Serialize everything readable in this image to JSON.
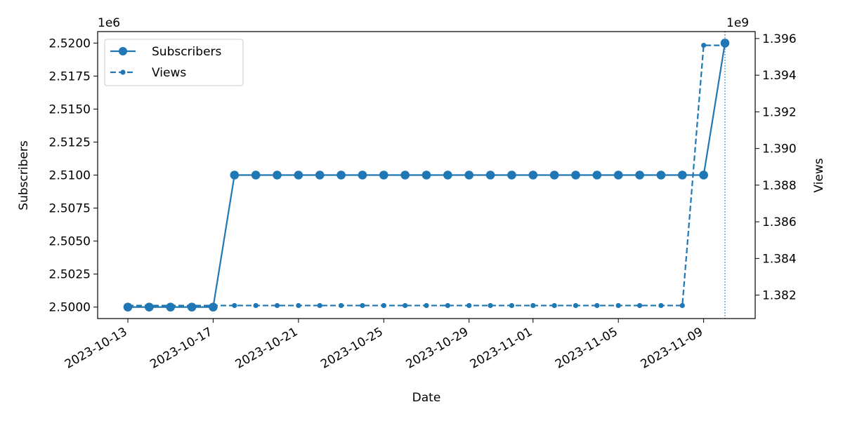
{
  "chart_data": {
    "type": "line",
    "xlabel": "Date",
    "ylabel": "Subscribers",
    "y2label": "Views",
    "y_multiplier_label": "1e6",
    "y2_multiplier_label": "1e9",
    "x_dates": [
      "2023-10-13",
      "2023-10-14",
      "2023-10-15",
      "2023-10-16",
      "2023-10-17",
      "2023-10-18",
      "2023-10-19",
      "2023-10-20",
      "2023-10-21",
      "2023-10-22",
      "2023-10-23",
      "2023-10-24",
      "2023-10-25",
      "2023-10-26",
      "2023-10-27",
      "2023-10-28",
      "2023-10-29",
      "2023-10-30",
      "2023-10-31",
      "2023-11-01",
      "2023-11-02",
      "2023-11-03",
      "2023-11-04",
      "2023-11-05",
      "2023-11-06",
      "2023-11-07",
      "2023-11-08",
      "2023-11-09",
      "2023-11-10"
    ],
    "x_ticks": [
      "2023-10-13",
      "2023-10-17",
      "2023-10-21",
      "2023-10-25",
      "2023-10-29",
      "2023-11-01",
      "2023-11-05",
      "2023-11-09"
    ],
    "x_range": [
      "2023-10-11 14:00",
      "2023-11-11 10:00"
    ],
    "vline_date": "2023-11-10",
    "series": [
      {
        "name": "Subscribers",
        "axis": "left",
        "style": "solid",
        "values": [
          2500000,
          2500000,
          2500000,
          2500000,
          2500000,
          2510000,
          2510000,
          2510000,
          2510000,
          2510000,
          2510000,
          2510000,
          2510000,
          2510000,
          2510000,
          2510000,
          2510000,
          2510000,
          2510000,
          2510000,
          2510000,
          2510000,
          2510000,
          2510000,
          2510000,
          2510000,
          2510000,
          2510000,
          2520000
        ]
      },
      {
        "name": "Views",
        "axis": "right",
        "style": "dashed",
        "values": [
          1381430000,
          1381430000,
          1381430000,
          1381430000,
          1381430000,
          1381430000,
          1381430000,
          1381430000,
          1381430000,
          1381430000,
          1381430000,
          1381430000,
          1381430000,
          1381430000,
          1381430000,
          1381430000,
          1381430000,
          1381430000,
          1381430000,
          1381430000,
          1381430000,
          1381430000,
          1381430000,
          1381430000,
          1381430000,
          1381430000,
          1381430000,
          1395630000,
          1395630000
        ]
      }
    ],
    "ylim": [
      2499130,
      2520870
    ],
    "y_ticks": [
      2500000,
      2502500,
      2505000,
      2507500,
      2510000,
      2512500,
      2515000,
      2517500,
      2520000
    ],
    "y_tick_labels": [
      "2.5000",
      "2.5025",
      "2.5050",
      "2.5075",
      "2.5100",
      "2.5125",
      "2.5150",
      "2.5175",
      "2.5200"
    ],
    "y2lim": [
      1380720000,
      1396380000
    ],
    "y2_ticks": [
      1382000000,
      1384000000,
      1386000000,
      1388000000,
      1390000000,
      1392000000,
      1394000000,
      1396000000
    ],
    "y2_tick_labels": [
      "1.382",
      "1.384",
      "1.386",
      "1.388",
      "1.390",
      "1.392",
      "1.394",
      "1.396"
    ],
    "legend_position": "top-left",
    "grid": false,
    "color": "#1f77b4"
  }
}
